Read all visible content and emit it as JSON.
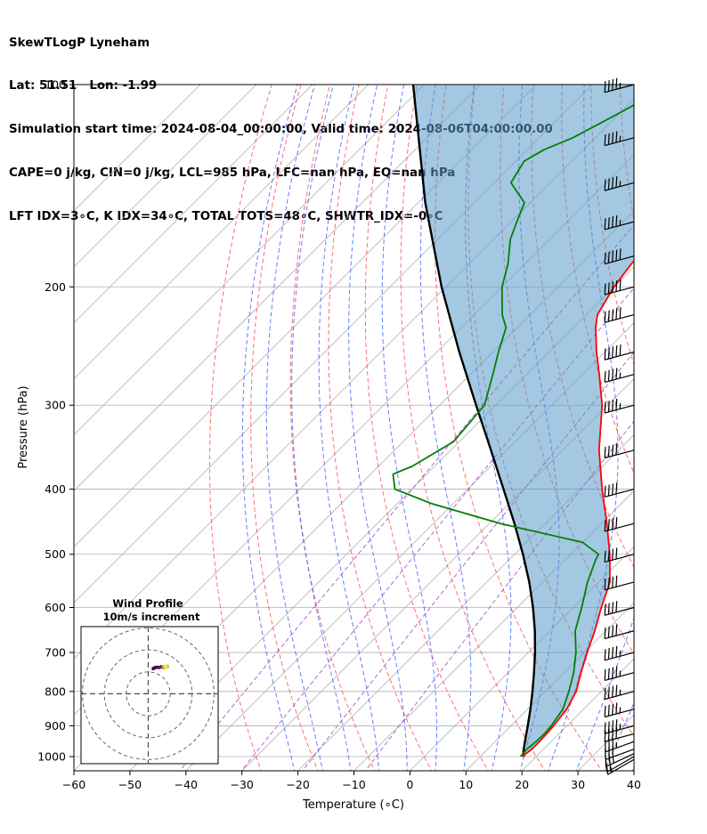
{
  "title_lines": [
    "SkewTLogP Lyneham",
    "Lat: 51.51   Lon: -1.99",
    "Simulation start time: 2024-08-04_00:00:00, Valid time: 2024-08-06T04:00:00.00",
    "CAPE=0 j/kg, CIN=0 j/kg, LCL=985 hPa, LFC=nan hPa, EQ=nan hPa",
    "LFT IDX=3∘C, K IDX=34∘C, TOTAL TOTS=48∘C, SHWTR_IDX=-0∘C"
  ],
  "chart_data": {
    "type": "line",
    "subtype": "skew-t log-p",
    "xlabel": "Temperature (∘C)",
    "ylabel": "Pressure (hPa)",
    "xlim": [
      -60,
      40
    ],
    "ylim": [
      1050,
      100
    ],
    "x_ticks": [
      -60,
      -50,
      -40,
      -30,
      -20,
      -10,
      0,
      10,
      20,
      30,
      40
    ],
    "y_ticks": [
      100,
      200,
      300,
      400,
      500,
      600,
      700,
      800,
      900,
      1000
    ],
    "y_scale": "log",
    "grid": true,
    "series": [
      {
        "role": "temperature",
        "color": "#ff0000",
        "pressure": [
          1000,
          975,
          950,
          925,
          900,
          850,
          800,
          750,
          700,
          650,
          600,
          550,
          500,
          450,
          400,
          350,
          300,
          270,
          250,
          230,
          220,
          200,
          185,
          170,
          160,
          150,
          140,
          130,
          125,
          120,
          110,
          100
        ],
        "temperature": [
          17.5,
          17.9,
          17.9,
          17.8,
          17.6,
          17.0,
          15.5,
          13.0,
          10.5,
          8.0,
          5.0,
          2.0,
          -3.0,
          -9.0,
          -16.0,
          -23.5,
          -31.0,
          -37.0,
          -41.5,
          -46.0,
          -48.0,
          -50.0,
          -51.0,
          -51.5,
          -52.5,
          -54.0,
          -55.5,
          -57.5,
          -59.0,
          -60.0,
          -63.0,
          -66.5
        ]
      },
      {
        "role": "dewpoint",
        "color": "#008000",
        "pressure": [
          1000,
          975,
          950,
          925,
          900,
          850,
          800,
          750,
          700,
          650,
          600,
          550,
          510,
          500,
          480,
          450,
          420,
          400,
          380,
          370,
          340,
          300,
          270,
          250,
          230,
          220,
          200,
          185,
          170,
          160,
          150,
          140,
          130,
          125,
          120,
          110,
          100
        ],
        "temperature": [
          17.2,
          17.0,
          17.3,
          17.4,
          17.2,
          16.3,
          14.2,
          11.7,
          8.5,
          4.5,
          1.5,
          -2.0,
          -4.5,
          -5.0,
          -10.0,
          -28.0,
          -44.0,
          -53.0,
          -56.0,
          -54.0,
          -51.0,
          -52.0,
          -56.0,
          -59.0,
          -62.0,
          -65.0,
          -70.0,
          -73.0,
          -77.0,
          -79.0,
          -81.0,
          -87.0,
          -88.5,
          -87.0,
          -84.0,
          -80.0,
          -76.0
        ]
      },
      {
        "role": "parcel",
        "color": "#000000",
        "pressure": [
          1000,
          985,
          950,
          900,
          850,
          800,
          750,
          700,
          650,
          600,
          550,
          500,
          450,
          400,
          350,
          300,
          250,
          200,
          150,
          100
        ],
        "temperature": [
          17.8,
          16.9,
          15.3,
          13.0,
          10.5,
          7.7,
          4.6,
          1.2,
          -2.7,
          -7.2,
          -12.4,
          -18.5,
          -25.5,
          -33.6,
          -42.8,
          -53.5,
          -66.0,
          -80.8,
          -98.7,
          -122.0
        ]
      }
    ],
    "wind_barbs": {
      "pressure": [
        1010,
        1000,
        990,
        975,
        950,
        925,
        900,
        850,
        800,
        750,
        700,
        650,
        600,
        550,
        500,
        450,
        400,
        350,
        300,
        270,
        250,
        220,
        200,
        180,
        160,
        140,
        120,
        100
      ],
      "speed_kt": [
        15,
        20,
        25,
        30,
        35,
        40,
        45,
        45,
        45,
        45,
        45,
        40,
        40,
        40,
        40,
        40,
        40,
        40,
        45,
        45,
        50,
        50,
        50,
        50,
        45,
        45,
        45,
        45
      ],
      "direction_deg": [
        240,
        240,
        245,
        250,
        250,
        255,
        255,
        255,
        255,
        255,
        255,
        255,
        255,
        255,
        255,
        255,
        255,
        255,
        255,
        255,
        255,
        255,
        255,
        255,
        255,
        255,
        255,
        255
      ]
    },
    "inset": {
      "title_lines": [
        "Wind Profile",
        "10m/s increment"
      ],
      "type": "hodograph",
      "ring_increment_ms": 10
    }
  }
}
